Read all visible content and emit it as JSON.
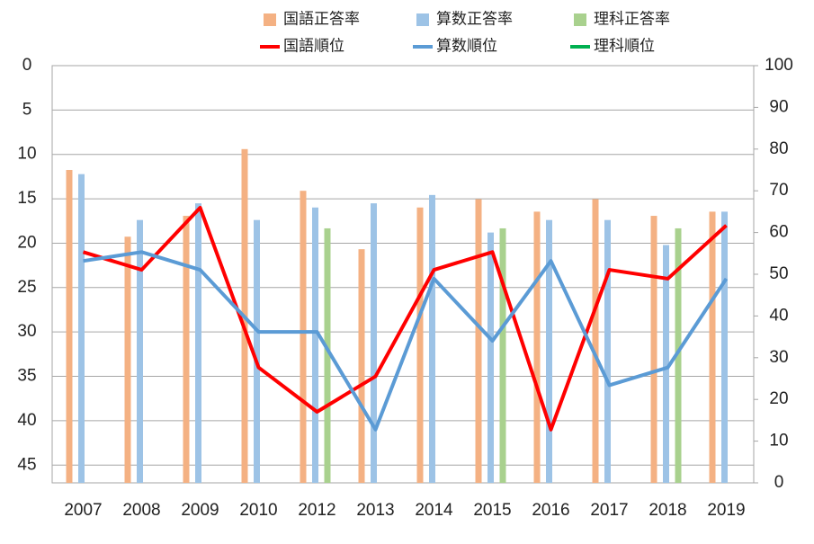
{
  "chart_data": {
    "type": "combo",
    "categories": [
      "2007",
      "2008",
      "2009",
      "2010",
      "2012",
      "2013",
      "2014",
      "2015",
      "2016",
      "2017",
      "2018",
      "2019"
    ],
    "series": [
      {
        "name": "国語正答率",
        "type": "bar",
        "axis": "y2",
        "color": "#f4b183",
        "values": [
          75,
          59,
          64,
          80,
          70,
          56,
          66,
          68,
          65,
          68,
          64,
          65
        ]
      },
      {
        "name": "算数正答率",
        "type": "bar",
        "axis": "y2",
        "color": "#9dc3e6",
        "values": [
          74,
          63,
          67,
          63,
          66,
          67,
          69,
          60,
          63,
          63,
          57,
          65
        ]
      },
      {
        "name": "理科正答率",
        "type": "bar",
        "axis": "y2",
        "color": "#a9d18e",
        "values": [
          null,
          null,
          null,
          null,
          61,
          null,
          null,
          61,
          null,
          null,
          61,
          null
        ]
      },
      {
        "name": "国語順位",
        "type": "line",
        "axis": "y",
        "color": "#ff0000",
        "values": [
          21,
          23,
          16,
          34,
          39,
          35,
          23,
          21,
          41,
          23,
          24,
          18
        ]
      },
      {
        "name": "算数順位",
        "type": "line",
        "axis": "y",
        "color": "#5b9bd5",
        "values": [
          22,
          21,
          23,
          30,
          30,
          41,
          24,
          31,
          22,
          36,
          34,
          24
        ]
      },
      {
        "name": "理科順位",
        "type": "line",
        "axis": "y",
        "color": "#00b050",
        "values": [
          null,
          null,
          null,
          null,
          null,
          null,
          null,
          null,
          null,
          null,
          null,
          null
        ]
      }
    ],
    "ylim": [
      0,
      47
    ],
    "y_reversed": true,
    "yticks": [
      0,
      5,
      10,
      15,
      20,
      25,
      30,
      35,
      40,
      45
    ],
    "y2lim": [
      0,
      100
    ],
    "y2ticks": [
      0,
      10,
      20,
      30,
      40,
      50,
      60,
      70,
      80,
      90,
      100
    ],
    "grid": true,
    "legend": "top"
  }
}
